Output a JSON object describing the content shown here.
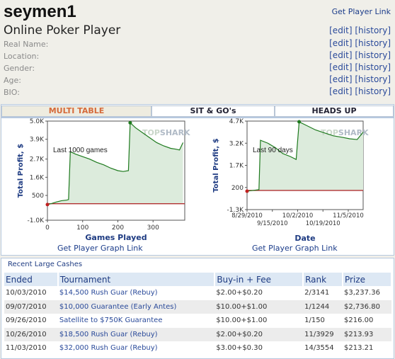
{
  "profile": {
    "username": "seymen1",
    "get_player_link": "Get Player Link",
    "subtitle": "Online Poker Player",
    "edit_label": "[edit]",
    "history_label": "[history]",
    "fields": [
      {
        "label": "Real Name:"
      },
      {
        "label": "Location:"
      },
      {
        "label": "Gender:"
      },
      {
        "label": "Age:"
      },
      {
        "label": "BIO:"
      }
    ]
  },
  "tabs": [
    {
      "label": "MULTI TABLE",
      "active": true
    },
    {
      "label": "SIT & GO's",
      "active": false
    },
    {
      "label": "HEADS UP",
      "active": false
    }
  ],
  "graph_link_label": "Get Player Graph Link",
  "watermark": {
    "left": "TOP",
    "right": "SHARK"
  },
  "chart_data": [
    {
      "type": "line",
      "annotation": "Last 1000 games",
      "xlabel": "Games Played",
      "ylabel": "Total Profit, $",
      "xlim": [
        0,
        390
      ],
      "ylim": [
        -1000,
        5000
      ],
      "xticks": [
        0,
        100,
        200,
        300
      ],
      "yticks": [
        "5.0K",
        "3.9K",
        "2.7K",
        "1.6K",
        "500",
        "-1.0K"
      ],
      "ytick_values": [
        5000,
        3900,
        2700,
        1600,
        500,
        -1000
      ],
      "baseline": 0,
      "points": [
        [
          0,
          -50
        ],
        [
          10,
          0
        ],
        [
          25,
          100
        ],
        [
          40,
          180
        ],
        [
          55,
          220
        ],
        [
          60,
          250
        ],
        [
          65,
          3150
        ],
        [
          80,
          3000
        ],
        [
          100,
          2850
        ],
        [
          120,
          2700
        ],
        [
          140,
          2500
        ],
        [
          160,
          2350
        ],
        [
          180,
          2150
        ],
        [
          200,
          2000
        ],
        [
          215,
          1950
        ],
        [
          230,
          2000
        ],
        [
          235,
          4900
        ],
        [
          250,
          4600
        ],
        [
          270,
          4300
        ],
        [
          290,
          4000
        ],
        [
          310,
          3700
        ],
        [
          330,
          3500
        ],
        [
          350,
          3350
        ],
        [
          365,
          3300
        ],
        [
          375,
          3250
        ],
        [
          385,
          3700
        ]
      ]
    },
    {
      "type": "line",
      "annotation": "Last 90 days",
      "xlabel": "Date",
      "ylabel": "Total Profit, $",
      "xlim": [
        "8/29/2010",
        "11/15/2010"
      ],
      "ylim": [
        -1300,
        4700
      ],
      "xticks_top": [
        "8/29/2010",
        "10/2/2010",
        "11/5/2010"
      ],
      "xticks_bottom": [
        "9/15/2010",
        "10/19/2010"
      ],
      "yticks": [
        "4.7K",
        "3.2K",
        "1.7K",
        "200",
        "-1.3K"
      ],
      "ytick_values": [
        4700,
        3200,
        1700,
        200,
        -1300
      ],
      "baseline": 0,
      "points": [
        [
          "8/29/2010",
          -50
        ],
        [
          "9/2/2010",
          0
        ],
        [
          "9/6/2010",
          50
        ],
        [
          "9/7/2010",
          3400
        ],
        [
          "9/12/2010",
          3200
        ],
        [
          "9/17/2010",
          2900
        ],
        [
          "9/22/2010",
          2500
        ],
        [
          "9/27/2010",
          2300
        ],
        [
          "10/1/2010",
          2100
        ],
        [
          "10/3/2010",
          4650
        ],
        [
          "10/8/2010",
          4400
        ],
        [
          "10/14/2010",
          4100
        ],
        [
          "10/20/2010",
          3900
        ],
        [
          "10/26/2010",
          3700
        ],
        [
          "11/1/2010",
          3600
        ],
        [
          "11/6/2010",
          3500
        ],
        [
          "11/11/2010",
          3450
        ],
        [
          "11/15/2010",
          3950
        ]
      ]
    }
  ],
  "recent": {
    "title": "Recent Large Cashes",
    "headers": [
      "Ended",
      "Tournament",
      "Buy-in + Fee",
      "Rank",
      "Prize"
    ],
    "rows": [
      {
        "ended": "10/03/2010",
        "tournament": "$14,500 Rush Guar (Rebuy)",
        "buyin": "$2.00+$0.20",
        "rank": "2/3141",
        "prize": "$3,237.36"
      },
      {
        "ended": "09/07/2010",
        "tournament": "$10,000 Guarantee (Early Antes)",
        "buyin": "$10.00+$1.00",
        "rank": "1/1244",
        "prize": "$2,736.80"
      },
      {
        "ended": "09/26/2010",
        "tournament": "Satellite to $750K Guarantee",
        "buyin": "$10.00+$1.00",
        "rank": "1/150",
        "prize": "$216.00"
      },
      {
        "ended": "10/26/2010",
        "tournament": "$18,500 Rush Guar (Rebuy)",
        "buyin": "$2.00+$0.20",
        "rank": "11/3929",
        "prize": "$213.93"
      },
      {
        "ended": "11/03/2010",
        "tournament": "$32,000 Rush Guar (Rebuy)",
        "buyin": "$3.00+$0.30",
        "rank": "14/3554",
        "prize": "$213.21"
      }
    ]
  },
  "colors": {
    "line": "#1e7a1e",
    "area": "#dcebdc",
    "baseline": "#b03030",
    "start_marker": "#c02020",
    "header_bg": "#dde8f4",
    "link": "#1b3c8a",
    "tab_active_text": "#d56a3a"
  }
}
